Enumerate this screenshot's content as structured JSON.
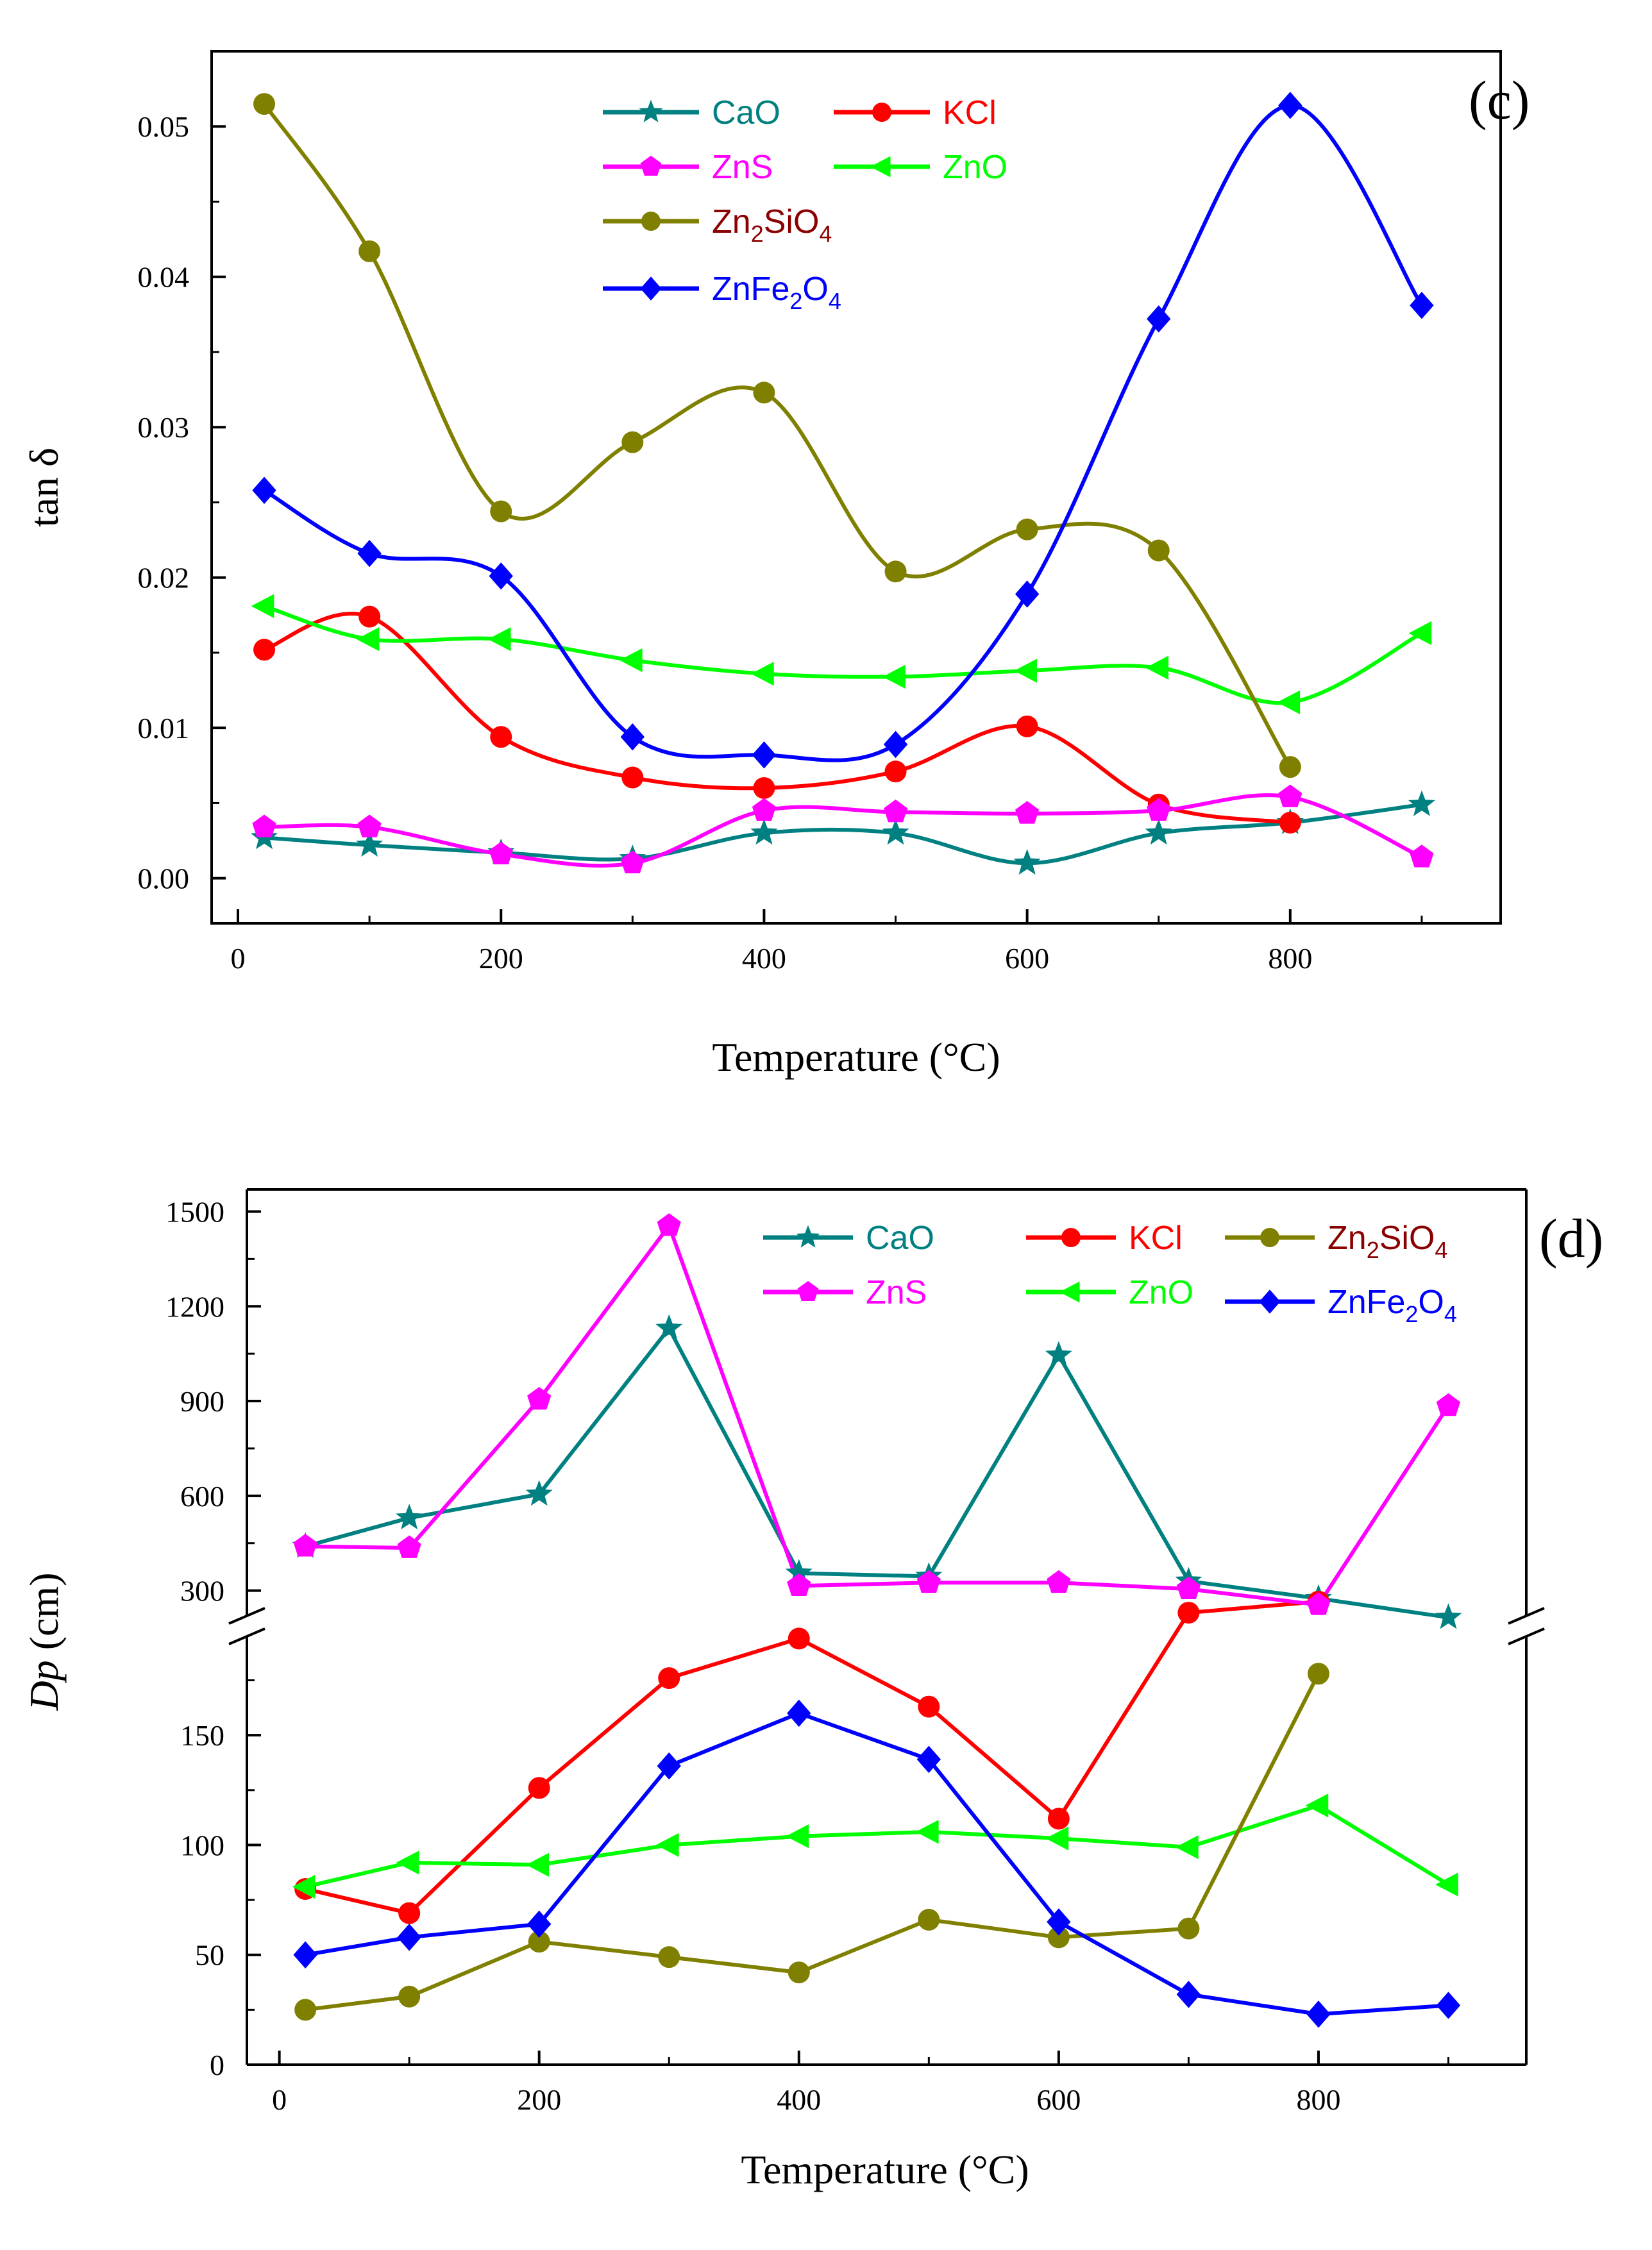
{
  "chart_data": [
    {
      "type": "scatter",
      "panel_label": "(c)",
      "xlabel": "Temperature (°C)",
      "ylabel": "tan δ",
      "xlim": [
        -20,
        960
      ],
      "ylim": [
        -0.003,
        0.055
      ],
      "xticks": [
        0,
        200,
        400,
        600,
        800
      ],
      "xtick_labels": [
        "0",
        "200",
        "400",
        "600",
        "800"
      ],
      "yticks": [
        0.0,
        0.01,
        0.02,
        0.03,
        0.04,
        0.05
      ],
      "ytick_labels": [
        "0.00",
        "0.01",
        "0.02",
        "0.03",
        "0.04",
        "0.05"
      ],
      "legend": "top-center",
      "x": [
        20,
        100,
        200,
        300,
        400,
        500,
        600,
        700,
        800,
        900
      ],
      "series": [
        {
          "name": "CaO",
          "color": "#008080",
          "marker": "star",
          "values": [
            0.0027,
            0.0022,
            0.0017,
            0.0013,
            0.003,
            0.003,
            0.001,
            0.003,
            0.0037,
            0.0049
          ]
        },
        {
          "name": "KCl",
          "color": "#ff0000",
          "marker": "circle",
          "values": [
            0.0152,
            0.0174,
            0.0094,
            0.0067,
            0.006,
            0.0071,
            0.0101,
            0.0049,
            0.0037,
            null
          ]
        },
        {
          "name": "ZnS",
          "color": "#ff00ff",
          "marker": "pentagon",
          "values": [
            0.0034,
            0.0034,
            0.0016,
            0.001,
            0.0045,
            0.0044,
            0.0043,
            0.0045,
            0.0054,
            0.0014
          ]
        },
        {
          "name": "ZnO",
          "color": "#00ff00",
          "marker": "triangle-left",
          "values": [
            0.0181,
            0.0159,
            0.0159,
            0.0145,
            0.0136,
            0.0134,
            0.0138,
            0.014,
            0.0117,
            0.0163
          ]
        },
        {
          "name": "Zn",
          "sub1": "2",
          "mid": "SiO",
          "sub2": "4",
          "color": "#808000",
          "text_color": "#8b0000",
          "marker": "circle",
          "values": [
            0.0515,
            0.0417,
            0.0244,
            0.029,
            0.0323,
            0.0204,
            0.0232,
            0.0218,
            0.0074,
            null
          ]
        },
        {
          "name": "ZnFe",
          "sub1": "2",
          "mid": "O",
          "sub2": "4",
          "color": "#0000ff",
          "text_color": "#0000ff",
          "marker": "diamond",
          "values": [
            0.0258,
            0.0216,
            0.0201,
            0.0094,
            0.0082,
            0.0089,
            0.0189,
            0.0372,
            0.0514,
            0.0381
          ]
        }
      ]
    },
    {
      "type": "line",
      "panel_label": "(d)",
      "xlabel": "Temperature (°C)",
      "ylabel": "Dp (cm)",
      "xlim": [
        -25,
        960
      ],
      "y_break": true,
      "lower_ylim": [
        0,
        195
      ],
      "upper_ylim": [
        220,
        1570
      ],
      "xticks": [
        0,
        200,
        400,
        600,
        800
      ],
      "xtick_labels": [
        "0",
        "200",
        "400",
        "600",
        "800"
      ],
      "lower_yticks": [
        0,
        50,
        100,
        150
      ],
      "lower_ytick_labels": [
        "0",
        "50",
        "100",
        "150"
      ],
      "upper_yticks": [
        300,
        600,
        900,
        1200,
        1500
      ],
      "upper_ytick_labels": [
        "300",
        "600",
        "900",
        "1200",
        "1500"
      ],
      "legend": "top-right",
      "x": [
        20,
        100,
        200,
        300,
        400,
        500,
        600,
        700,
        800,
        900
      ],
      "series": [
        {
          "name": "CaO",
          "color": "#008080",
          "marker": "star",
          "values": [
            440,
            530,
            605,
            1130,
            355,
            345,
            1045,
            330,
            275,
            215
          ]
        },
        {
          "name": "KCl",
          "color": "#ff0000",
          "marker": "circle",
          "values": [
            80,
            69,
            126,
            176,
            194,
            163,
            112,
            230,
            265,
            null
          ]
        },
        {
          "name": "ZnS",
          "color": "#ff00ff",
          "marker": "pentagon",
          "values": [
            440,
            435,
            905,
            1455,
            315,
            325,
            325,
            305,
            255,
            885
          ]
        },
        {
          "name": "ZnO",
          "color": "#00ff00",
          "marker": "triangle-left",
          "values": [
            81,
            92,
            91,
            100,
            104,
            106,
            103,
            99,
            118,
            82
          ]
        },
        {
          "name": "Zn",
          "sub1": "2",
          "mid": "SiO",
          "sub2": "4",
          "color": "#808000",
          "text_color": "#8b0000",
          "marker": "circle",
          "values": [
            25,
            31,
            56,
            49,
            42,
            66,
            58,
            62,
            178,
            null
          ]
        },
        {
          "name": "ZnFe",
          "sub1": "2",
          "mid": "O",
          "sub2": "4",
          "color": "#0000ff",
          "text_color": "#0000ff",
          "marker": "diamond",
          "values": [
            50,
            58,
            64,
            136,
            160,
            139,
            65,
            32,
            23,
            27
          ]
        }
      ]
    }
  ]
}
